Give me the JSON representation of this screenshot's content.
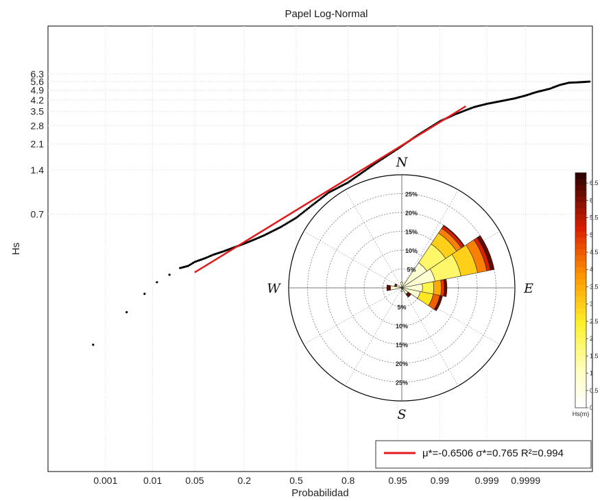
{
  "chart_data": [
    {
      "type": "scatter",
      "title": "Papel Log-Normal",
      "xlabel": "Probabilidad",
      "ylabel": "Hs",
      "x_scale": "normal-probability",
      "y_scale": "log",
      "x_ticks": [
        "0.001",
        "0.01",
        "0.05",
        "0.2",
        "0.5",
        "0.8",
        "0.95",
        "0.99",
        "0.999",
        "0.9999"
      ],
      "y_ticks": [
        "0.7",
        "1.4",
        "2.1",
        "2.8",
        "3.5",
        "4.2",
        "4.9",
        "5.6",
        "6.3"
      ],
      "grid": true,
      "series": [
        {
          "style": "dots",
          "color": "#000000",
          "points": [
            [
              0.0005,
              0.09
            ],
            [
              0.003,
              0.15
            ],
            [
              0.007,
              0.2
            ],
            [
              0.012,
              0.24
            ],
            [
              0.02,
              0.27
            ],
            [
              0.03,
              0.3
            ],
            [
              0.04,
              0.31
            ],
            [
              0.05,
              0.33
            ],
            [
              0.07,
              0.35
            ],
            [
              0.09,
              0.37
            ],
            [
              0.12,
              0.39
            ],
            [
              0.15,
              0.41
            ],
            [
              0.2,
              0.44
            ],
            [
              0.25,
              0.47
            ],
            [
              0.3,
              0.5
            ],
            [
              0.4,
              0.57
            ],
            [
              0.5,
              0.66
            ],
            [
              0.6,
              0.8
            ],
            [
              0.7,
              0.98
            ],
            [
              0.8,
              1.15
            ],
            [
              0.9,
              1.55
            ],
            [
              0.95,
              1.95
            ],
            [
              0.975,
              2.4
            ],
            [
              0.99,
              3.0
            ],
            [
              0.995,
              3.35
            ],
            [
              0.998,
              3.75
            ],
            [
              0.999,
              3.95
            ],
            [
              0.9995,
              4.1
            ],
            [
              0.9998,
              4.3
            ],
            [
              0.9999,
              4.5
            ],
            [
              0.99995,
              4.75
            ],
            [
              0.99998,
              5.0
            ],
            [
              0.99999,
              5.3
            ],
            [
              0.999995,
              5.5
            ],
            [
              0.999998,
              5.55
            ],
            [
              0.999999,
              5.6
            ]
          ]
        },
        {
          "style": "line",
          "color": "#e31a1c",
          "points": [
            [
              0.05,
              0.28
            ],
            [
              0.997,
              3.8
            ]
          ]
        }
      ],
      "legend": {
        "position": "bottom-right",
        "entries": [
          {
            "color": "#e31a1c",
            "label": "μ*=-0.6506 σ*=0.765 R²=0.994"
          }
        ]
      }
    },
    {
      "type": "polar-bar",
      "cardinals": {
        "north": "N",
        "south": "S",
        "east": "E",
        "west": "W"
      },
      "radial_ticks_upper": [
        "5%",
        "10%",
        "15%",
        "20%",
        "25%"
      ],
      "radial_ticks_lower": [
        "5%",
        "10%",
        "15%",
        "20%",
        "25%"
      ],
      "r_max": 30,
      "sectors": [
        {
          "direction": 45,
          "total": 20.0,
          "layers": [
            8.0,
            6.0,
            3.5,
            1.5,
            0.8,
            0.2
          ]
        },
        {
          "direction": 67.5,
          "total": 25.0,
          "layers": [
            9.0,
            7.0,
            4.5,
            2.5,
            1.0,
            1.0
          ]
        },
        {
          "direction": 90,
          "total": 12.0,
          "layers": [
            5.5,
            3.0,
            2.0,
            0.8,
            0.7
          ]
        },
        {
          "direction": 112.5,
          "total": 11.0,
          "layers": [
            5.0,
            3.5,
            1.8,
            0.7
          ]
        },
        {
          "direction": 135,
          "total": 3.0,
          "layers": [
            2.0,
            1.0
          ]
        },
        {
          "direction": 270,
          "total": 4.0,
          "layers": [
            3.0,
            1.0
          ]
        },
        {
          "direction": 292.5,
          "total": 2.0,
          "layers": [
            1.5,
            0.5
          ]
        },
        {
          "direction": 0,
          "total": 1.5,
          "layers": [
            1.5
          ]
        },
        {
          "direction": 180,
          "total": 1.0,
          "layers": [
            1.0
          ]
        }
      ],
      "colorbar": {
        "title": "Hs(m)",
        "ticks": [
          "0",
          "0.5",
          "1",
          "1.5",
          "2",
          "2.5",
          "3",
          "3.5",
          "4",
          "4.5",
          "5",
          "5.5",
          "6",
          "6.5"
        ],
        "max": 6.8
      }
    }
  ]
}
